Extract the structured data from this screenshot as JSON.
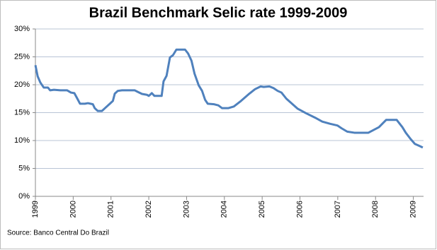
{
  "chart_data": {
    "type": "line",
    "title": "Brazil Benchmark Selic rate 1999-2009",
    "source": "Source: Banco Central Do Brazil",
    "x": [
      1999.0,
      1999.06,
      1999.13,
      1999.22,
      1999.33,
      1999.39,
      1999.49,
      1999.66,
      1999.84,
      1999.94,
      2000.03,
      2000.11,
      2000.18,
      2000.31,
      2000.39,
      2000.52,
      2000.57,
      2000.65,
      2000.76,
      2000.84,
      2000.97,
      2001.05,
      2001.1,
      2001.18,
      2001.29,
      2001.63,
      2001.7,
      2001.82,
      2001.95,
      2002.0,
      2002.08,
      2002.15,
      2002.34,
      2002.39,
      2002.47,
      2002.56,
      2002.64,
      2002.73,
      2002.96,
      2003.04,
      2003.13,
      2003.21,
      2003.32,
      2003.41,
      2003.49,
      2003.56,
      2003.73,
      2003.84,
      2003.94,
      2004.1,
      2004.25,
      2004.44,
      2004.66,
      2004.81,
      2004.96,
      2005.04,
      2005.19,
      2005.3,
      2005.41,
      2005.51,
      2005.64,
      2005.79,
      2005.94,
      2006.16,
      2006.4,
      2006.59,
      2006.8,
      2006.99,
      2007.1,
      2007.25,
      2007.44,
      2007.81,
      2008.09,
      2008.28,
      2008.56,
      2008.71,
      2008.8,
      2008.93,
      2009.04,
      2009.14,
      2009.25
    ],
    "values": [
      23.5,
      21.5,
      20.4,
      19.5,
      19.5,
      19.0,
      19.1,
      19.0,
      19.0,
      18.6,
      18.5,
      17.5,
      16.6,
      16.6,
      16.7,
      16.5,
      15.8,
      15.3,
      15.3,
      15.8,
      16.6,
      17.1,
      18.4,
      18.9,
      19.0,
      19.0,
      18.75,
      18.35,
      18.2,
      18.0,
      18.5,
      18.0,
      18.0,
      20.6,
      21.6,
      24.9,
      25.3,
      26.3,
      26.3,
      25.6,
      24.3,
      22.0,
      19.9,
      18.9,
      17.3,
      16.6,
      16.5,
      16.3,
      15.8,
      15.8,
      16.1,
      17.1,
      18.4,
      19.2,
      19.7,
      19.6,
      19.7,
      19.4,
      18.9,
      18.6,
      17.5,
      16.6,
      15.7,
      14.9,
      14.1,
      13.4,
      13.0,
      12.7,
      12.2,
      11.6,
      11.4,
      11.4,
      12.4,
      13.7,
      13.7,
      12.4,
      11.4,
      10.25,
      9.4,
      9.1,
      8.75
    ],
    "color": "#4f81bd",
    "xlim": [
      1999,
      2009.27
    ],
    "xticks": [
      1999,
      2000,
      2001,
      2002,
      2003,
      2004,
      2005,
      2006,
      2007,
      2008,
      2009
    ],
    "ylim": [
      0,
      30
    ],
    "yticks": [
      {
        "value": 0,
        "label": "0%"
      },
      {
        "value": 5,
        "label": "5%"
      },
      {
        "value": 10,
        "label": "10%"
      },
      {
        "value": 15,
        "label": "15%"
      },
      {
        "value": 20,
        "label": "20%"
      },
      {
        "value": 25,
        "label": "25%"
      },
      {
        "value": 30,
        "label": "30%"
      }
    ],
    "grid": true
  }
}
